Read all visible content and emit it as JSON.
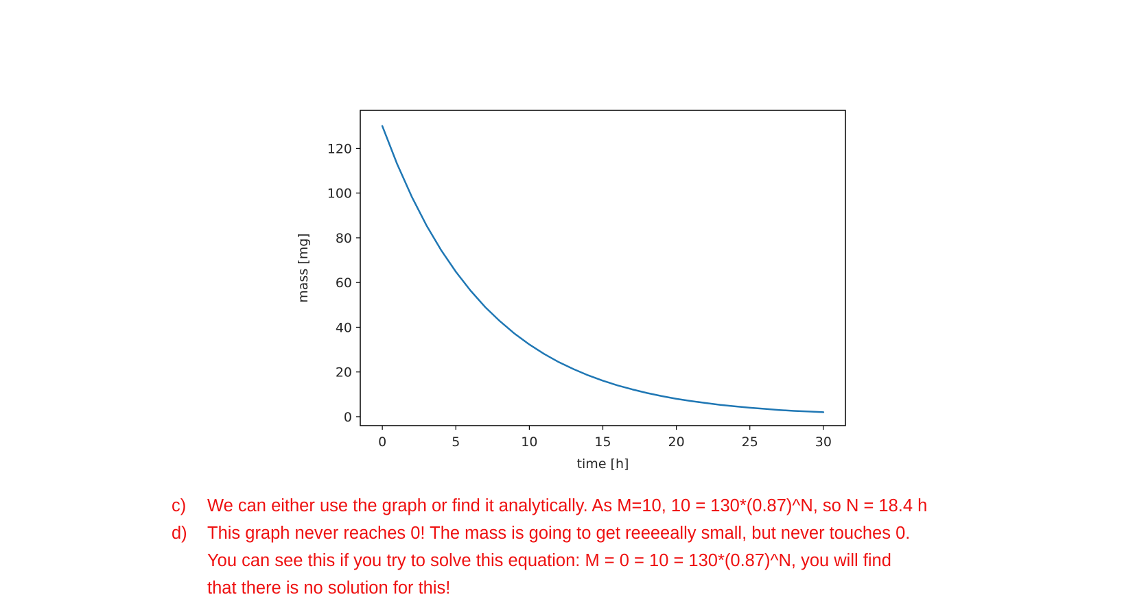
{
  "chart_data": {
    "type": "line",
    "title": "",
    "xlabel": "time [h]",
    "ylabel": "mass [mg]",
    "xlim": [
      -1.5,
      31.5
    ],
    "ylim": [
      -4,
      137
    ],
    "xticks": [
      0,
      5,
      10,
      15,
      20,
      25,
      30
    ],
    "yticks": [
      0,
      20,
      40,
      60,
      80,
      100,
      120
    ],
    "grid": false,
    "series": [
      {
        "color": "#1f77b4",
        "function": "M = 130*(0.87)^t",
        "x": [
          0,
          1,
          2,
          3,
          4,
          5,
          6,
          7,
          8,
          9,
          10,
          11,
          12,
          13,
          14,
          15,
          16,
          17,
          18,
          19,
          20,
          21,
          22,
          23,
          24,
          25,
          26,
          27,
          28,
          29,
          30
        ],
        "y": [
          130.0,
          113.1,
          98.4,
          85.6,
          74.5,
          64.8,
          56.4,
          49.0,
          42.7,
          37.1,
          32.3,
          28.1,
          24.4,
          21.3,
          18.5,
          16.1,
          14.0,
          12.2,
          10.6,
          9.2,
          8.0,
          7.0,
          6.1,
          5.3,
          4.6,
          4.0,
          3.5,
          3.0,
          2.6,
          2.3,
          2.0
        ]
      }
    ]
  },
  "notes": [
    {
      "label": "c)",
      "text": "We can either use the graph or find it analytically. As M=10, 10 = 130*(0.87)^N, so N = 18.4 h"
    },
    {
      "label": "d)",
      "text": "This graph never reaches 0! The mass is going to get reeeeally small, but never touches 0.\nYou can see this if you try to solve this equation: M = 0 = 10 = 130*(0.87)^N, you will find\nthat there is no solution for this!"
    }
  ],
  "colors": {
    "line": "#1f77b4",
    "notes": "#ee1111",
    "axes": "#000000"
  }
}
